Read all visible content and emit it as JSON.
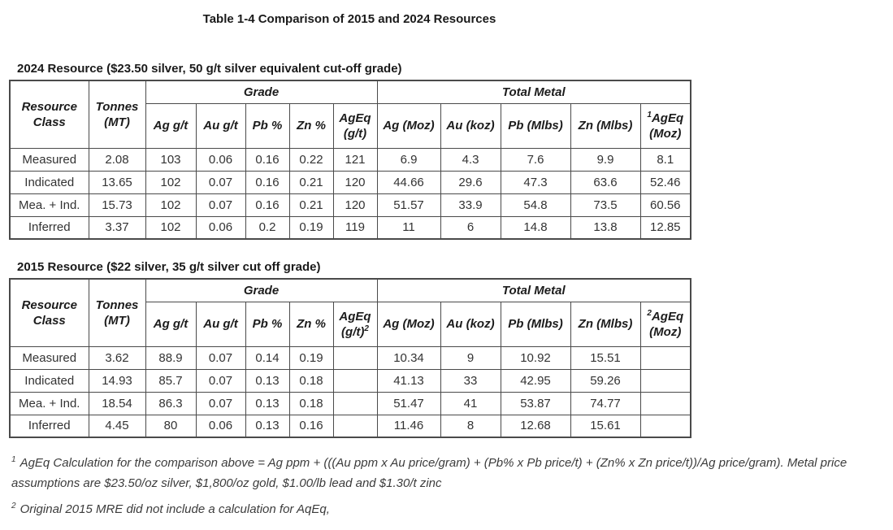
{
  "title": "Table 1-4 Comparison of 2015 and 2024 Resources",
  "table1": {
    "caption": "2024 Resource ($23.50 silver, 50 g/t silver equivalent cut-off grade)",
    "groups": {
      "grade": "Grade",
      "total_metal": "Total Metal"
    },
    "header": {
      "resource_class_line1": "Resource",
      "resource_class_line2": "Class",
      "tonnes_line1": "Tonnes",
      "tonnes_line2": "(MT)",
      "ag_grade": "Ag g/t",
      "au_grade": "Au g/t",
      "pb_grade": "Pb %",
      "zn_grade": "Zn %",
      "ageq_grade_line1": "AgEq",
      "ageq_grade_line2": "(g/t)",
      "ageq_grade_sup": "",
      "ag_metal": "Ag (Moz)",
      "au_metal": "Au (koz)",
      "pb_metal": "Pb (Mlbs)",
      "zn_metal": "Zn (Mlbs)",
      "ageq_metal_sup": "1",
      "ageq_metal_line1": "AgEq",
      "ageq_metal_line2": "(Moz)"
    },
    "rows": [
      [
        "Measured",
        "2.08",
        "103",
        "0.06",
        "0.16",
        "0.22",
        "121",
        "6.9",
        "4.3",
        "7.6",
        "9.9",
        "8.1"
      ],
      [
        "Indicated",
        "13.65",
        "102",
        "0.07",
        "0.16",
        "0.21",
        "120",
        "44.66",
        "29.6",
        "47.3",
        "63.6",
        "52.46"
      ],
      [
        "Mea. + Ind.",
        "15.73",
        "102",
        "0.07",
        "0.16",
        "0.21",
        "120",
        "51.57",
        "33.9",
        "54.8",
        "73.5",
        "60.56"
      ],
      [
        "Inferred",
        "3.37",
        "102",
        "0.06",
        "0.2",
        "0.19",
        "119",
        "11",
        "6",
        "14.8",
        "13.8",
        "12.85"
      ]
    ]
  },
  "table2": {
    "caption": "2015 Resource ($22 silver, 35 g/t silver cut off grade)",
    "groups": {
      "grade": "Grade",
      "total_metal": "Total Metal"
    },
    "header": {
      "resource_class_line1": "Resource",
      "resource_class_line2": "Class",
      "tonnes_line1": "Tonnes",
      "tonnes_line2": "(MT)",
      "ag_grade": "Ag g/t",
      "au_grade": "Au g/t",
      "pb_grade": "Pb %",
      "zn_grade": "Zn %",
      "ageq_grade_line1": "AgEq",
      "ageq_grade_line2": "(g/t)",
      "ageq_grade_sup": "2",
      "ag_metal": "Ag (Moz)",
      "au_metal": "Au (koz)",
      "pb_metal": "Pb (Mlbs)",
      "zn_metal": "Zn (Mlbs)",
      "ageq_metal_sup": "2",
      "ageq_metal_line1": "AgEq",
      "ageq_metal_line2": "(Moz)"
    },
    "rows": [
      [
        "Measured",
        "3.62",
        "88.9",
        "0.07",
        "0.14",
        "0.19",
        "",
        "10.34",
        "9",
        "10.92",
        "15.51",
        ""
      ],
      [
        "Indicated",
        "14.93",
        "85.7",
        "0.07",
        "0.13",
        "0.18",
        "",
        "41.13",
        "33",
        "42.95",
        "59.26",
        ""
      ],
      [
        "Mea. + Ind.",
        "18.54",
        "86.3",
        "0.07",
        "0.13",
        "0.18",
        "",
        "51.47",
        "41",
        "53.87",
        "74.77",
        ""
      ],
      [
        "Inferred",
        "4.45",
        "80",
        "0.06",
        "0.13",
        "0.16",
        "",
        "11.46",
        "8",
        "12.68",
        "15.61",
        ""
      ]
    ]
  },
  "footnotes": [
    {
      "sup": "1",
      "text": "AgEq Calculation for the comparison above = Ag ppm + (((Au ppm x Au price/gram) + (Pb% x Pb price/t) + (Zn% x Zn price/t))/Ag price/gram). Metal price assumptions are $23.50/oz silver, $1,800/oz gold, $1.00/lb lead and $1.30/t zinc"
    },
    {
      "sup": "2",
      "text": "Original 2015 MRE did not include a calculation for AqEq,"
    }
  ]
}
